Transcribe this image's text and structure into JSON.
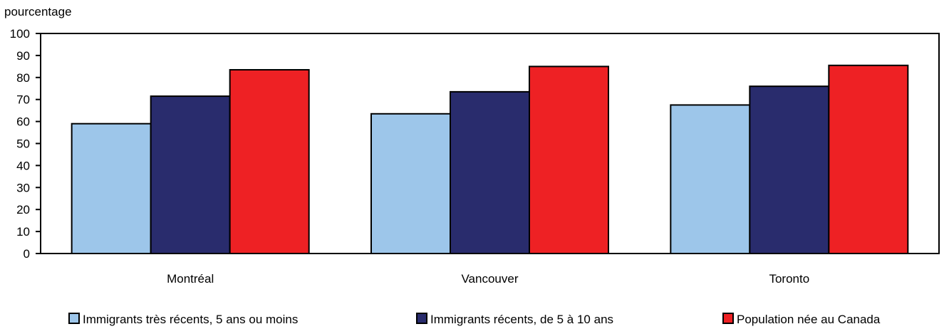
{
  "chart_data": {
    "type": "bar",
    "ylabel": "pourcentage",
    "ylim": [
      0,
      100
    ],
    "yticks": [
      0,
      10,
      20,
      30,
      40,
      50,
      60,
      70,
      80,
      90,
      100
    ],
    "grid": false,
    "legend_position": "bottom",
    "categories": [
      "Montréal",
      "Vancouver",
      "Toronto"
    ],
    "series": [
      {
        "name": "Immigrants très récents, 5 ans ou moins",
        "color": "#9DC6EA",
        "values": [
          59,
          63.5,
          67.5
        ]
      },
      {
        "name": "Immigrants récents, de 5 à 10 ans",
        "color": "#292C6D",
        "values": [
          71.5,
          73.5,
          76
        ]
      },
      {
        "name": "Population née au Canada",
        "color": "#EE2124",
        "values": [
          83.5,
          85,
          85.5
        ]
      }
    ]
  }
}
